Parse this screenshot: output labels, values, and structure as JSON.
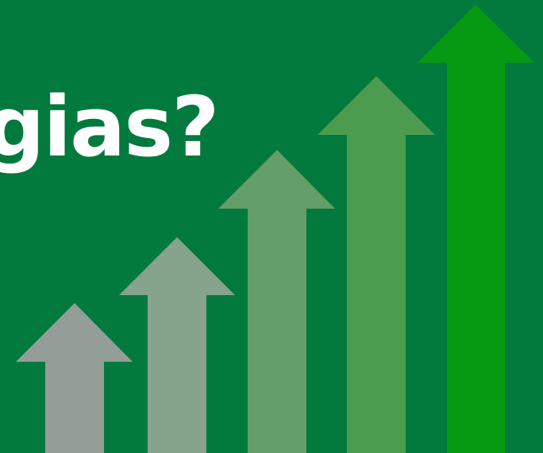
{
  "headline": "gias?",
  "colors": {
    "background": "#027a3d",
    "text": "#ffffff"
  },
  "arrows": [
    {
      "name": "arrow-1",
      "color": "#939e96"
    },
    {
      "name": "arrow-2",
      "color": "#86a38c"
    },
    {
      "name": "arrow-3",
      "color": "#649e68"
    },
    {
      "name": "arrow-4",
      "color": "#4b9c4f"
    },
    {
      "name": "arrow-5",
      "color": "#069a12"
    }
  ]
}
